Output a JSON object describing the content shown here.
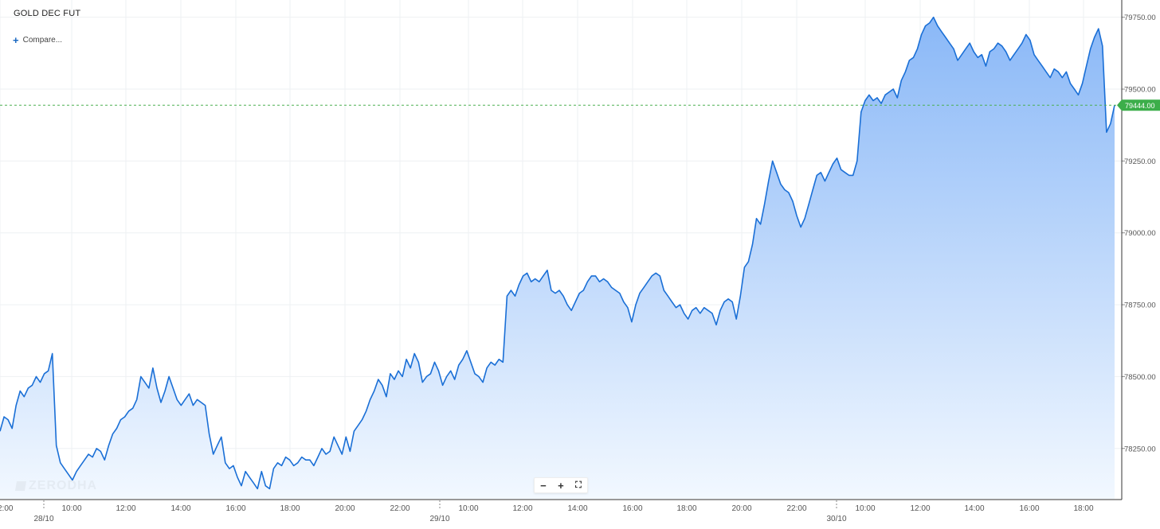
{
  "header": {
    "symbol": "GOLD DEC FUT",
    "compare_label": "Compare..."
  },
  "watermark": "ZERODHA",
  "zoom_controls": {
    "minus": "−",
    "plus": "+",
    "fullscreen": "⛶"
  },
  "current_price_label": "79444.00",
  "colors": {
    "line": "#1a6fd6",
    "fill_top": "#8ab8f7",
    "fill_bottom": "#f2f8ff",
    "price_tag": "#3cae4a",
    "grid": "#eef0f3"
  },
  "chart_data": {
    "type": "area",
    "title": "GOLD DEC FUT",
    "ylim": [
      78075,
      79810
    ],
    "y_ticks": [
      "78250.00",
      "78500.00",
      "78750.00",
      "79000.00",
      "79250.00",
      "79500.00",
      "79750.00"
    ],
    "x_ticks": [
      {
        "label": "2:00",
        "date": ""
      },
      {
        "label": "10:00",
        "date": "28/10"
      },
      {
        "label": "12:00",
        "date": ""
      },
      {
        "label": "14:00",
        "date": ""
      },
      {
        "label": "16:00",
        "date": ""
      },
      {
        "label": "18:00",
        "date": ""
      },
      {
        "label": "20:00",
        "date": ""
      },
      {
        "label": "22:00",
        "date": ""
      },
      {
        "label": "10:00",
        "date": "29/10"
      },
      {
        "label": "12:00",
        "date": ""
      },
      {
        "label": "14:00",
        "date": ""
      },
      {
        "label": "16:00",
        "date": ""
      },
      {
        "label": "18:00",
        "date": ""
      },
      {
        "label": "20:00",
        "date": ""
      },
      {
        "label": "22:00",
        "date": ""
      },
      {
        "label": "10:00",
        "date": "30/10"
      },
      {
        "label": "12:00",
        "date": ""
      },
      {
        "label": "14:00",
        "date": ""
      },
      {
        "label": "16:00",
        "date": ""
      },
      {
        "label": "18:00",
        "date": ""
      }
    ],
    "current_price": 79444,
    "values": [
      78310,
      78360,
      78350,
      78320,
      78400,
      78450,
      78430,
      78460,
      78470,
      78500,
      78480,
      78510,
      78520,
      78580,
      78260,
      78200,
      78180,
      78160,
      78140,
      78170,
      78190,
      78210,
      78230,
      78220,
      78250,
      78240,
      78210,
      78260,
      78300,
      78320,
      78350,
      78360,
      78380,
      78390,
      78420,
      78500,
      78480,
      78460,
      78530,
      78460,
      78410,
      78450,
      78500,
      78460,
      78420,
      78400,
      78420,
      78440,
      78400,
      78420,
      78410,
      78400,
      78300,
      78230,
      78260,
      78290,
      78200,
      78180,
      78190,
      78150,
      78120,
      78170,
      78150,
      78130,
      78110,
      78170,
      78120,
      78110,
      78180,
      78200,
      78190,
      78220,
      78210,
      78190,
      78200,
      78220,
      78210,
      78210,
      78190,
      78220,
      78250,
      78230,
      78240,
      78290,
      78260,
      78230,
      78290,
      78240,
      78310,
      78330,
      78350,
      78380,
      78420,
      78450,
      78490,
      78470,
      78430,
      78510,
      78490,
      78520,
      78500,
      78560,
      78530,
      78580,
      78550,
      78480,
      78500,
      78510,
      78550,
      78520,
      78470,
      78500,
      78520,
      78490,
      78540,
      78560,
      78590,
      78550,
      78510,
      78500,
      78480,
      78530,
      78550,
      78540,
      78560,
      78550,
      78780,
      78800,
      78780,
      78820,
      78850,
      78860,
      78830,
      78840,
      78830,
      78850,
      78870,
      78800,
      78790,
      78800,
      78780,
      78750,
      78730,
      78760,
      78790,
      78800,
      78830,
      78850,
      78850,
      78830,
      78840,
      78830,
      78810,
      78800,
      78790,
      78760,
      78740,
      78690,
      78750,
      78790,
      78810,
      78830,
      78850,
      78860,
      78850,
      78800,
      78780,
      78760,
      78740,
      78750,
      78720,
      78700,
      78730,
      78740,
      78720,
      78740,
      78730,
      78720,
      78680,
      78730,
      78760,
      78770,
      78760,
      78700,
      78780,
      78880,
      78900,
      78960,
      79050,
      79030,
      79100,
      79180,
      79250,
      79210,
      79170,
      79150,
      79140,
      79110,
      79060,
      79020,
      79050,
      79100,
      79150,
      79200,
      79210,
      79180,
      79210,
      79240,
      79260,
      79220,
      79210,
      79200,
      79200,
      79250,
      79420,
      79460,
      79480,
      79460,
      79470,
      79450,
      79480,
      79490,
      79500,
      79470,
      79530,
      79560,
      79600,
      79610,
      79640,
      79690,
      79720,
      79730,
      79750,
      79720,
      79700,
      79680,
      79660,
      79640,
      79600,
      79620,
      79640,
      79660,
      79630,
      79610,
      79620,
      79580,
      79630,
      79640,
      79660,
      79650,
      79630,
      79600,
      79620,
      79640,
      79660,
      79690,
      79670,
      79620,
      79600,
      79580,
      79560,
      79540,
      79570,
      79560,
      79540,
      79560,
      79520,
      79500,
      79480,
      79520,
      79580,
      79640,
      79680,
      79710,
      79650,
      79350,
      79380,
      79444
    ]
  }
}
